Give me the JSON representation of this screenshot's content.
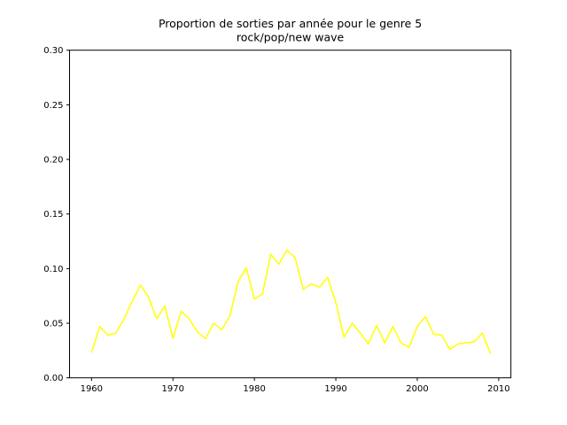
{
  "figure": {
    "background": "#ffffff"
  },
  "chart_data": {
    "type": "line",
    "title": "Proportion de sorties par année pour le genre 5\nrock/pop/new wave",
    "title_line1": "Proportion de sorties par année pour le genre 5",
    "title_line2": "rock/pop/new wave",
    "xlabel": "",
    "ylabel": "",
    "grid": false,
    "legend": "none",
    "xlim": [
      1957.3,
      2011.5
    ],
    "ylim": [
      0.0,
      0.3
    ],
    "x_ticks": [
      1960,
      1970,
      1980,
      1990,
      2000,
      2010
    ],
    "y_ticks": [
      "0.00",
      "0.05",
      "0.10",
      "0.15",
      "0.20",
      "0.25",
      "0.30"
    ],
    "x": [
      1960,
      1961,
      1962,
      1963,
      1964,
      1965,
      1966,
      1967,
      1968,
      1969,
      1970,
      1971,
      1972,
      1973,
      1974,
      1975,
      1976,
      1977,
      1978,
      1979,
      1980,
      1981,
      1982,
      1983,
      1984,
      1985,
      1986,
      1987,
      1988,
      1989,
      1990,
      1991,
      1992,
      1993,
      1994,
      1995,
      1996,
      1997,
      1998,
      1999,
      2000,
      2001,
      2002,
      2003,
      2004,
      2005,
      2006,
      2007,
      2008,
      2009
    ],
    "series": [
      {
        "name": "proportion rock/pop/new wave",
        "color": "#ffff00",
        "values": [
          0.023,
          0.047,
          0.039,
          0.041,
          0.054,
          0.07,
          0.085,
          0.074,
          0.054,
          0.066,
          0.036,
          0.061,
          0.054,
          0.042,
          0.036,
          0.05,
          0.044,
          0.057,
          0.088,
          0.101,
          0.072,
          0.077,
          0.113,
          0.104,
          0.117,
          0.11,
          0.081,
          0.086,
          0.083,
          0.092,
          0.069,
          0.037,
          0.05,
          0.041,
          0.031,
          0.048,
          0.032,
          0.047,
          0.032,
          0.028,
          0.047,
          0.056,
          0.04,
          0.039,
          0.026,
          0.031,
          0.032,
          0.033,
          0.041,
          0.022
        ]
      }
    ]
  },
  "colors": {
    "line": "#ffff00",
    "spine": "#000000",
    "text": "#000000",
    "background": "#ffffff"
  }
}
